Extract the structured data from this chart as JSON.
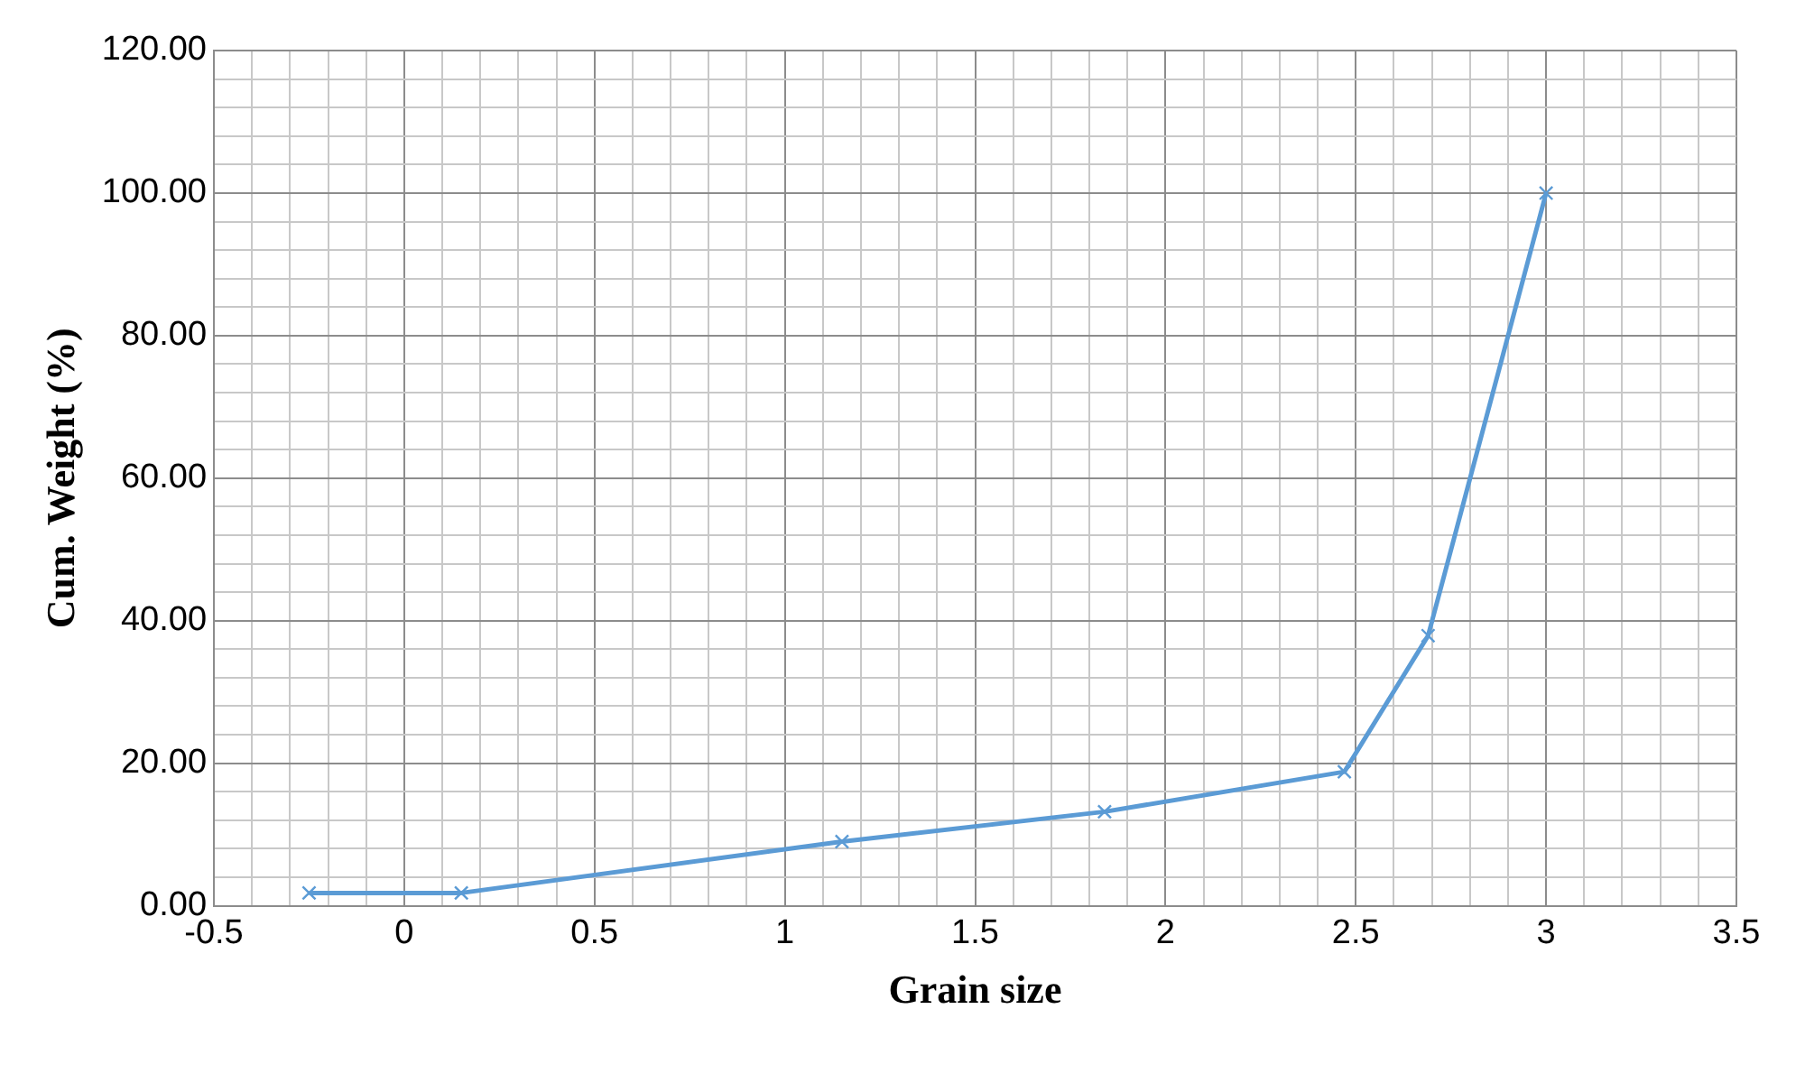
{
  "chart_data": {
    "type": "line",
    "xlabel": "Grain size",
    "ylabel": "Cum. Weight (%)",
    "series": [
      {
        "color": "#5b9bd5",
        "x": [
          -0.25,
          0.15,
          1.15,
          1.84,
          2.47,
          2.69,
          3.0
        ],
        "values": [
          1.8,
          1.8,
          9.0,
          13.2,
          18.8,
          37.9,
          100
        ]
      }
    ],
    "xlim": [
      -0.5,
      3.5
    ],
    "xticks": [
      -0.5,
      {
        "value": -0.4,
        "label": null
      },
      {
        "value": -0.3,
        "label": null
      },
      {
        "value": -0.2,
        "label": null
      },
      {
        "value": -0.1,
        "label": null
      },
      0,
      {
        "value": 0.1,
        "label": null
      },
      {
        "value": 0.2,
        "label": null
      },
      {
        "value": 0.3,
        "label": null
      },
      {
        "value": 0.4,
        "label": null
      },
      0.5,
      {
        "value": 0.6,
        "label": null
      },
      {
        "value": 0.7,
        "label": null
      },
      {
        "value": 0.8,
        "label": null
      },
      {
        "value": 0.9,
        "label": null
      },
      1,
      {
        "value": 1.1,
        "label": null
      },
      {
        "value": 1.2,
        "label": null
      },
      {
        "value": 1.3,
        "label": null
      },
      {
        "value": 1.4,
        "label": null
      },
      1.5,
      {
        "value": 1.6,
        "label": null
      },
      {
        "value": 1.7,
        "label": null
      },
      {
        "value": 1.8,
        "label": null
      },
      {
        "value": 1.9,
        "label": null
      },
      2,
      {
        "value": 2.1,
        "label": null
      },
      {
        "value": 2.2,
        "label": null
      },
      {
        "value": 2.3,
        "label": null
      },
      {
        "value": 2.4,
        "label": null
      },
      2.5,
      {
        "value": 2.6,
        "label": null
      },
      {
        "value": 2.7,
        "label": null
      },
      {
        "value": 2.8,
        "label": null
      },
      {
        "value": 2.9,
        "label": null
      },
      3,
      {
        "value": 3.1,
        "label": null
      },
      {
        "value": 3.2,
        "label": null
      },
      {
        "value": 3.3,
        "label": null
      },
      {
        "value": 3.4,
        "label": null
      },
      3.5
    ],
    "ylim": [
      0,
      120
    ],
    "yticks": [
      {
        "value": 0,
        "label": "0.00"
      },
      {
        "value": 4,
        "label": null
      },
      {
        "value": 8,
        "label": null
      },
      {
        "value": 12,
        "label": null
      },
      {
        "value": 16,
        "label": null
      },
      {
        "value": 20,
        "label": "20.00"
      },
      {
        "value": 24,
        "label": null
      },
      {
        "value": 28,
        "label": null
      },
      {
        "value": 32,
        "label": null
      },
      {
        "value": 36,
        "label": null
      },
      {
        "value": 40,
        "label": "40.00"
      },
      {
        "value": 44,
        "label": null
      },
      {
        "value": 48,
        "label": null
      },
      {
        "value": 52,
        "label": null
      },
      {
        "value": 56,
        "label": null
      },
      {
        "value": 60,
        "label": "60.00"
      },
      {
        "value": 64,
        "label": null
      },
      {
        "value": 68,
        "label": null
      },
      {
        "value": 72,
        "label": null
      },
      {
        "value": 76,
        "label": null
      },
      {
        "value": 80,
        "label": "80.00"
      },
      {
        "value": 84,
        "label": null
      },
      {
        "value": 88,
        "label": null
      },
      {
        "value": 92,
        "label": null
      },
      {
        "value": 96,
        "label": null
      },
      {
        "value": 100,
        "label": "100.00"
      },
      {
        "value": 104,
        "label": null
      },
      {
        "value": 108,
        "label": null
      },
      {
        "value": 112,
        "label": null
      },
      {
        "value": 116,
        "label": null
      },
      {
        "value": 120,
        "label": "120.00"
      }
    ],
    "grid": true,
    "marker": "cross",
    "line_style": "solid"
  }
}
